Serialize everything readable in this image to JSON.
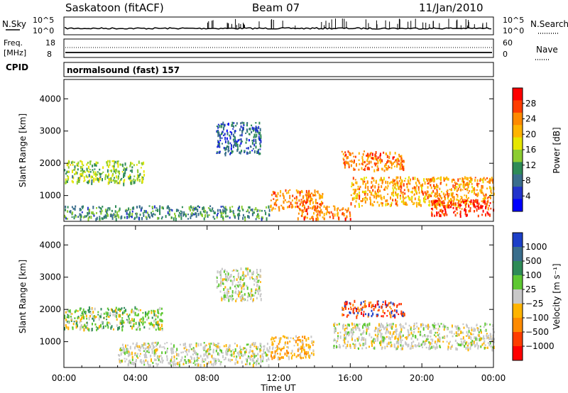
{
  "header": {
    "station": "Saskatoon (fitACF)",
    "beam": "Beam 07",
    "date": "11/Jan/2010"
  },
  "strip": {
    "nsky_label": "N.Sky",
    "nsky_ticks": [
      "10^5",
      "10^0"
    ],
    "nsearch_label": "N.Search",
    "nsearch_ticks": [
      "10^5",
      "10^0"
    ],
    "freq_label_1": "Freq.",
    "freq_label_2": "[MHz]",
    "freq_ticks": [
      "18",
      "8"
    ],
    "nave_label": "Nave",
    "nave_ticks": [
      "60",
      "0"
    ],
    "cpid_label": "CPID",
    "cpid_value": "normalsound (fast) 157"
  },
  "power_colorbar": {
    "label": "Power [dB]",
    "ticks": [
      "28",
      "24",
      "20",
      "16",
      "12",
      "8",
      "4"
    ],
    "colors": [
      "#ff0000",
      "#ff3d00",
      "#ff8a00",
      "#ffb400",
      "#e6e600",
      "#8ccd32",
      "#2e8b57",
      "#3a6e8c",
      "#2233cc",
      "#0000ff"
    ]
  },
  "velocity_colorbar": {
    "label": "Velocity [m s⁻¹]",
    "ticks": [
      "1000",
      "500",
      "100",
      "25",
      "−25",
      "−100",
      "−500",
      "−1000"
    ],
    "colors": [
      "#1c3fc8",
      "#3a6e8c",
      "#2e8b57",
      "#5ec832",
      "#c8c8c8",
      "#ffb400",
      "#ff8a00",
      "#ff3d00",
      "#ff0000"
    ]
  },
  "chart_data": [
    {
      "type": "heatmap",
      "panel": "power",
      "ylabel": "Slant Range [km]",
      "yticks": [
        1000,
        2000,
        3000,
        4000
      ],
      "ylim": [
        200,
        4600
      ],
      "xlim_hours": [
        0,
        24
      ],
      "value_range_db": [
        0,
        30
      ],
      "regions": [
        {
          "t0": 0.0,
          "t1": 4.5,
          "r0": 1400,
          "r1": 2100,
          "level": 14
        },
        {
          "t0": 0.0,
          "t1": 11.5,
          "r0": 300,
          "r1": 700,
          "level": 10
        },
        {
          "t0": 8.5,
          "t1": 11.0,
          "r0": 2300,
          "r1": 3300,
          "level": 7
        },
        {
          "t0": 11.5,
          "t1": 14.5,
          "r0": 600,
          "r1": 1200,
          "level": 24
        },
        {
          "t0": 13.0,
          "t1": 16.0,
          "r0": 300,
          "r1": 700,
          "level": 24
        },
        {
          "t0": 15.5,
          "t1": 19.0,
          "r0": 1800,
          "r1": 2400,
          "level": 24
        },
        {
          "t0": 16.0,
          "t1": 24.0,
          "r0": 700,
          "r1": 1600,
          "level": 22
        },
        {
          "t0": 20.5,
          "t1": 24.0,
          "r0": 400,
          "r1": 900,
          "level": 28
        }
      ]
    },
    {
      "type": "heatmap",
      "panel": "velocity",
      "ylabel": "Slant Range [km]",
      "xlabel": "Time UT",
      "yticks": [
        1000,
        2000,
        3000,
        4000
      ],
      "ylim": [
        200,
        4600
      ],
      "xlim_hours": [
        0,
        24
      ],
      "xticks": [
        "00:00",
        "04:00",
        "08:00",
        "12:00",
        "16:00",
        "20:00",
        "00:00"
      ],
      "regions": [
        {
          "t0": 0.0,
          "t1": 5.5,
          "r0": 1400,
          "r1": 2100,
          "class": "positive-low"
        },
        {
          "t0": 3.0,
          "t1": 11.5,
          "r0": 300,
          "r1": 1000,
          "class": "near-zero"
        },
        {
          "t0": 8.5,
          "t1": 11.0,
          "r0": 2300,
          "r1": 3300,
          "class": "near-zero"
        },
        {
          "t0": 11.5,
          "t1": 14.0,
          "r0": 500,
          "r1": 1200,
          "class": "negative-moderate"
        },
        {
          "t0": 15.5,
          "t1": 19.0,
          "r0": 1800,
          "r1": 2300,
          "class": "negative-strong"
        },
        {
          "t0": 15.0,
          "t1": 24.0,
          "r0": 800,
          "r1": 1600,
          "class": "near-zero"
        }
      ]
    }
  ]
}
